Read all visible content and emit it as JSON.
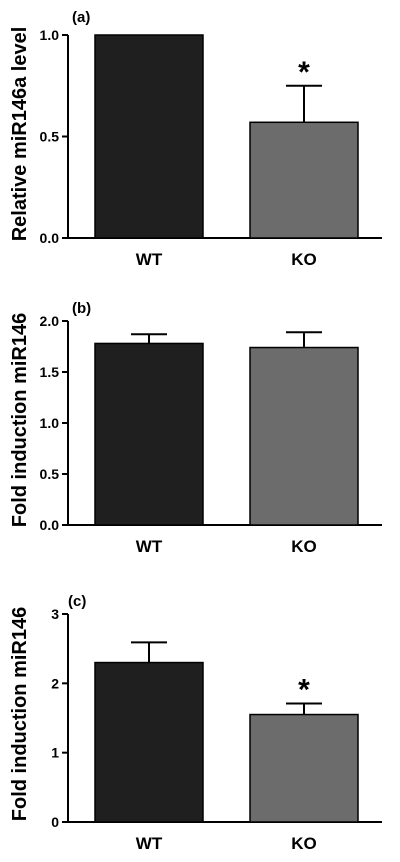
{
  "chart_data": [
    {
      "type": "bar",
      "panel": "(a)",
      "title": "",
      "xlabel": "",
      "ylabel": "Relative miR146a level",
      "categories": [
        "WT",
        "KO"
      ],
      "values": [
        1.0,
        0.57
      ],
      "errors": [
        0.0,
        0.18
      ],
      "significance": [
        "",
        "*"
      ],
      "bar_colors": [
        "#1f1f1f",
        "#6c6c6c"
      ],
      "ylim": [
        0,
        1.0
      ],
      "yticks": [
        0.0,
        0.5,
        1.0
      ],
      "ytick_labels": [
        "0.0",
        "0.5",
        "1.0"
      ],
      "grid": false,
      "legend": "none"
    },
    {
      "type": "bar",
      "panel": "(b)",
      "title": "",
      "xlabel": "",
      "ylabel": "Fold induction miR146",
      "categories": [
        "WT",
        "KO"
      ],
      "values": [
        1.78,
        1.74
      ],
      "errors": [
        0.09,
        0.15
      ],
      "significance": [
        "",
        ""
      ],
      "bar_colors": [
        "#1f1f1f",
        "#6c6c6c"
      ],
      "ylim": [
        0,
        2.0
      ],
      "yticks": [
        0.0,
        0.5,
        1.0,
        1.5,
        2.0
      ],
      "ytick_labels": [
        "0.0",
        "0.5",
        "1.0",
        "1.5",
        "2.0"
      ],
      "grid": false,
      "legend": "none"
    },
    {
      "type": "bar",
      "panel": "(c)",
      "title": "",
      "xlabel": "",
      "ylabel": "Fold induction miR146",
      "categories": [
        "WT",
        "KO"
      ],
      "values": [
        2.3,
        1.55
      ],
      "errors": [
        0.29,
        0.16
      ],
      "significance": [
        "",
        "*"
      ],
      "bar_colors": [
        "#1f1f1f",
        "#6c6c6c"
      ],
      "ylim": [
        0,
        3
      ],
      "yticks": [
        0,
        1,
        2,
        3
      ],
      "ytick_labels": [
        "0",
        "1",
        "2",
        "3"
      ],
      "grid": false,
      "legend": "none"
    }
  ]
}
